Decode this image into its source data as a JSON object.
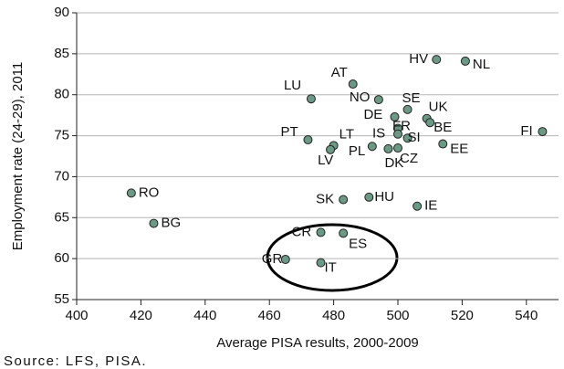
{
  "chart_data": {
    "type": "scatter",
    "xlabel": "Average PISA results, 2000-2009",
    "ylabel": "Employment rate (24-29), 2011",
    "source": "Source: LFS, PISA.",
    "color": "#6a9a86",
    "grid": true,
    "xlim": [
      400,
      550
    ],
    "xticks": [
      400,
      420,
      440,
      460,
      480,
      500,
      520,
      540
    ],
    "ylim": [
      55,
      90
    ],
    "yticks": [
      55,
      60,
      65,
      70,
      75,
      80,
      85,
      90
    ],
    "labels": [
      "RO",
      "BG",
      "LU",
      "PT",
      "LT",
      "LV",
      "AT",
      "NO",
      "HV",
      "NL",
      "SE",
      "UK",
      "DE",
      "FR",
      "BE",
      "IS",
      "SI",
      "PL",
      "DK",
      "CZ",
      "EE",
      "FI",
      "SK",
      "HU",
      "IE",
      "CR",
      "ES",
      "GR",
      "IT"
    ],
    "x": [
      417,
      424,
      473,
      472,
      480,
      479,
      486,
      494,
      512,
      521,
      503,
      509,
      499,
      500,
      510,
      500,
      503,
      492,
      497,
      500,
      514,
      545,
      483,
      491,
      506,
      476,
      483,
      465,
      476
    ],
    "values": [
      68,
      64.3,
      79.5,
      74.5,
      73.8,
      73.3,
      81.3,
      79.4,
      84.3,
      84.1,
      78.2,
      77.1,
      77.3,
      75.9,
      76.6,
      75.2,
      74.7,
      73.7,
      73.4,
      73.5,
      74,
      75.5,
      67.2,
      67.5,
      66.4,
      63.2,
      63.1,
      59.9,
      59.5
    ]
  }
}
